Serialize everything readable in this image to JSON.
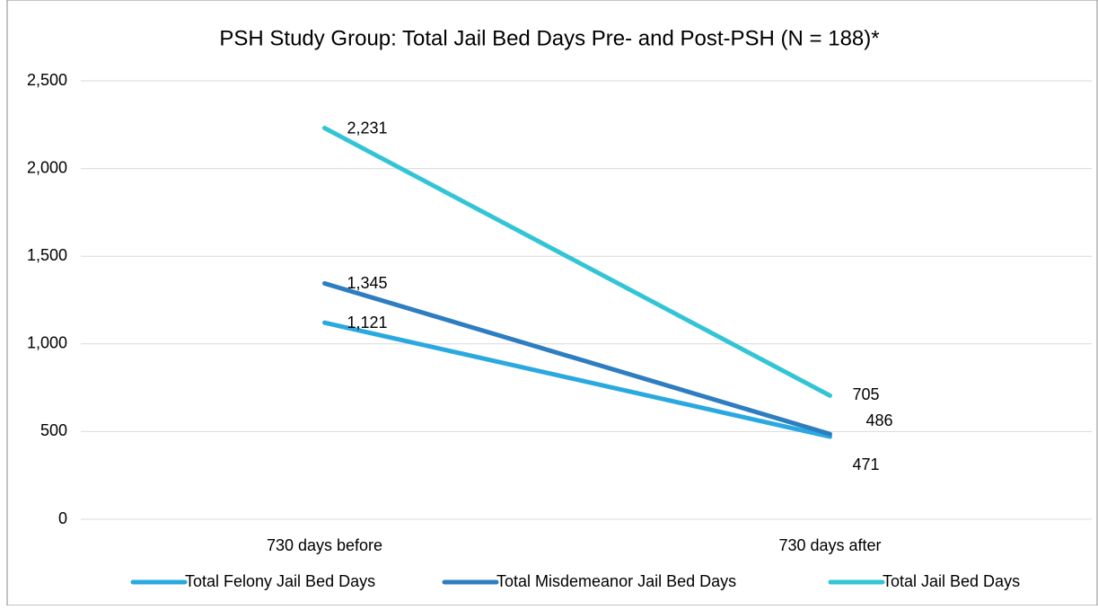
{
  "chart_data": {
    "type": "line",
    "title": "PSH Study Group: Total Jail Bed Days Pre- and Post-PSH (N = 188)*",
    "categories": [
      "730 days before",
      "730 days after"
    ],
    "series": [
      {
        "name": "Total Felony Jail Bed Days",
        "color": "#2aa9e0",
        "values": [
          1121,
          471
        ],
        "value_labels": [
          "1,121",
          "471"
        ]
      },
      {
        "name": "Total Misdemeanor Jail Bed Days",
        "color": "#2e7dc1",
        "values": [
          1345,
          486
        ],
        "value_labels": [
          "1,345",
          "486"
        ]
      },
      {
        "name": "Total Jail Bed Days",
        "color": "#33c4d5",
        "values": [
          2231,
          705
        ],
        "value_labels": [
          "2,231",
          "705"
        ]
      }
    ],
    "ylim": [
      0,
      2500
    ],
    "yticks": [
      0,
      500,
      {
        "value": 1000,
        "label": "1,000"
      },
      {
        "value": 1500,
        "label": "1,500"
      },
      {
        "value": 2000,
        "label": "2,000"
      },
      {
        "value": 2500,
        "label": "2,500"
      }
    ],
    "grid": true,
    "legend": "bottom"
  }
}
